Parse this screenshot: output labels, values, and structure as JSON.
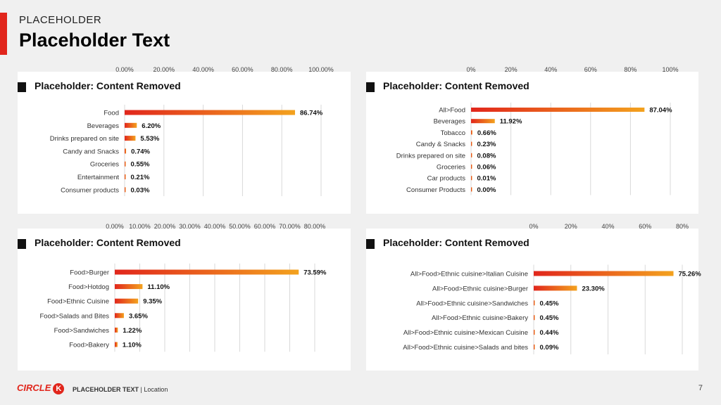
{
  "header": {
    "supertitle": "PLACEHOLDER",
    "title": "Placeholder Text"
  },
  "footer": {
    "brand": "CIRCLE",
    "brand_mark": "K",
    "text": "PLACEHOLDER TEXT",
    "separator": "|",
    "location": "Location",
    "page": "7"
  },
  "colors": {
    "accent": "#e1261c",
    "bar_start": "#e1261c",
    "bar_end": "#f3a21e",
    "grid": "#d9d9d9"
  },
  "chart_data": [
    {
      "type": "bar",
      "orientation": "horizontal",
      "title": "Placeholder: Content Removed",
      "categories": [
        "Food",
        "Beverages",
        "Drinks prepared on site",
        "Candy and Snacks",
        "Groceries",
        "Entertainment",
        "Consumer products"
      ],
      "values": [
        86.74,
        6.2,
        5.53,
        0.74,
        0.55,
        0.21,
        0.03
      ],
      "labels": [
        "86.74%",
        "6.20%",
        "5.53%",
        "0.74%",
        "0.55%",
        "0.21%",
        "0.03%"
      ],
      "xlim": [
        0,
        100
      ],
      "xticks": [
        "0.00%",
        "20.00%",
        "40.00%",
        "60.00%",
        "80.00%",
        "100.00%"
      ],
      "grid": true
    },
    {
      "type": "bar",
      "orientation": "horizontal",
      "title": "Placeholder: Content Removed",
      "categories": [
        "All>Food",
        "Beverages",
        "Tobacco",
        "Candy & Snacks",
        "Drinks prepared on site",
        "Groceries",
        "Car products",
        "Consumer Products"
      ],
      "values": [
        87.04,
        11.92,
        0.66,
        0.23,
        0.08,
        0.06,
        0.01,
        0.0
      ],
      "labels": [
        "87.04%",
        "11.92%",
        "0.66%",
        "0.23%",
        "0.08%",
        "0.06%",
        "0.01%",
        "0.00%"
      ],
      "xlim": [
        0,
        100
      ],
      "xticks": [
        "0%",
        "20%",
        "40%",
        "60%",
        "80%",
        "100%"
      ],
      "grid": true
    },
    {
      "type": "bar",
      "orientation": "horizontal",
      "title": "Placeholder: Content Removed",
      "categories": [
        "Food>Burger",
        "Food>Hotdog",
        "Food>Ethnic Cuisine",
        "Food>Salads and Bites",
        "Food>Sandwiches",
        "Food>Bakery"
      ],
      "values": [
        73.59,
        11.1,
        9.35,
        3.65,
        1.22,
        1.1
      ],
      "labels": [
        "73.59%",
        "11.10%",
        "9.35%",
        "3.65%",
        "1.22%",
        "1.10%"
      ],
      "xlim": [
        0,
        80
      ],
      "xticks": [
        "0.00%",
        "10.00%",
        "20.00%",
        "30.00%",
        "40.00%",
        "50.00%",
        "60.00%",
        "70.00%",
        "80.00%"
      ],
      "grid": true
    },
    {
      "type": "bar",
      "orientation": "horizontal",
      "title": "Placeholder: Content Removed",
      "categories": [
        "All>Food>Ethnic cuisine>Italian  Cuisine",
        "All>Food>Ethnic cuisine>Burger",
        "All>Food>Ethnic cuisine>Sandwiches",
        "All>Food>Ethnic cuisine>Bakery",
        "All>Food>Ethnic cuisine>Mexican Cuisine",
        "All>Food>Ethnic cuisine>Salads and bites"
      ],
      "values": [
        75.26,
        23.3,
        0.45,
        0.45,
        0.44,
        0.09
      ],
      "labels": [
        "75.26%",
        "23.30%",
        "0.45%",
        "0.45%",
        "0.44%",
        "0.09%"
      ],
      "xlim": [
        0,
        80
      ],
      "xticks": [
        "0%",
        "20%",
        "40%",
        "60%",
        "80%"
      ],
      "grid": true
    }
  ]
}
